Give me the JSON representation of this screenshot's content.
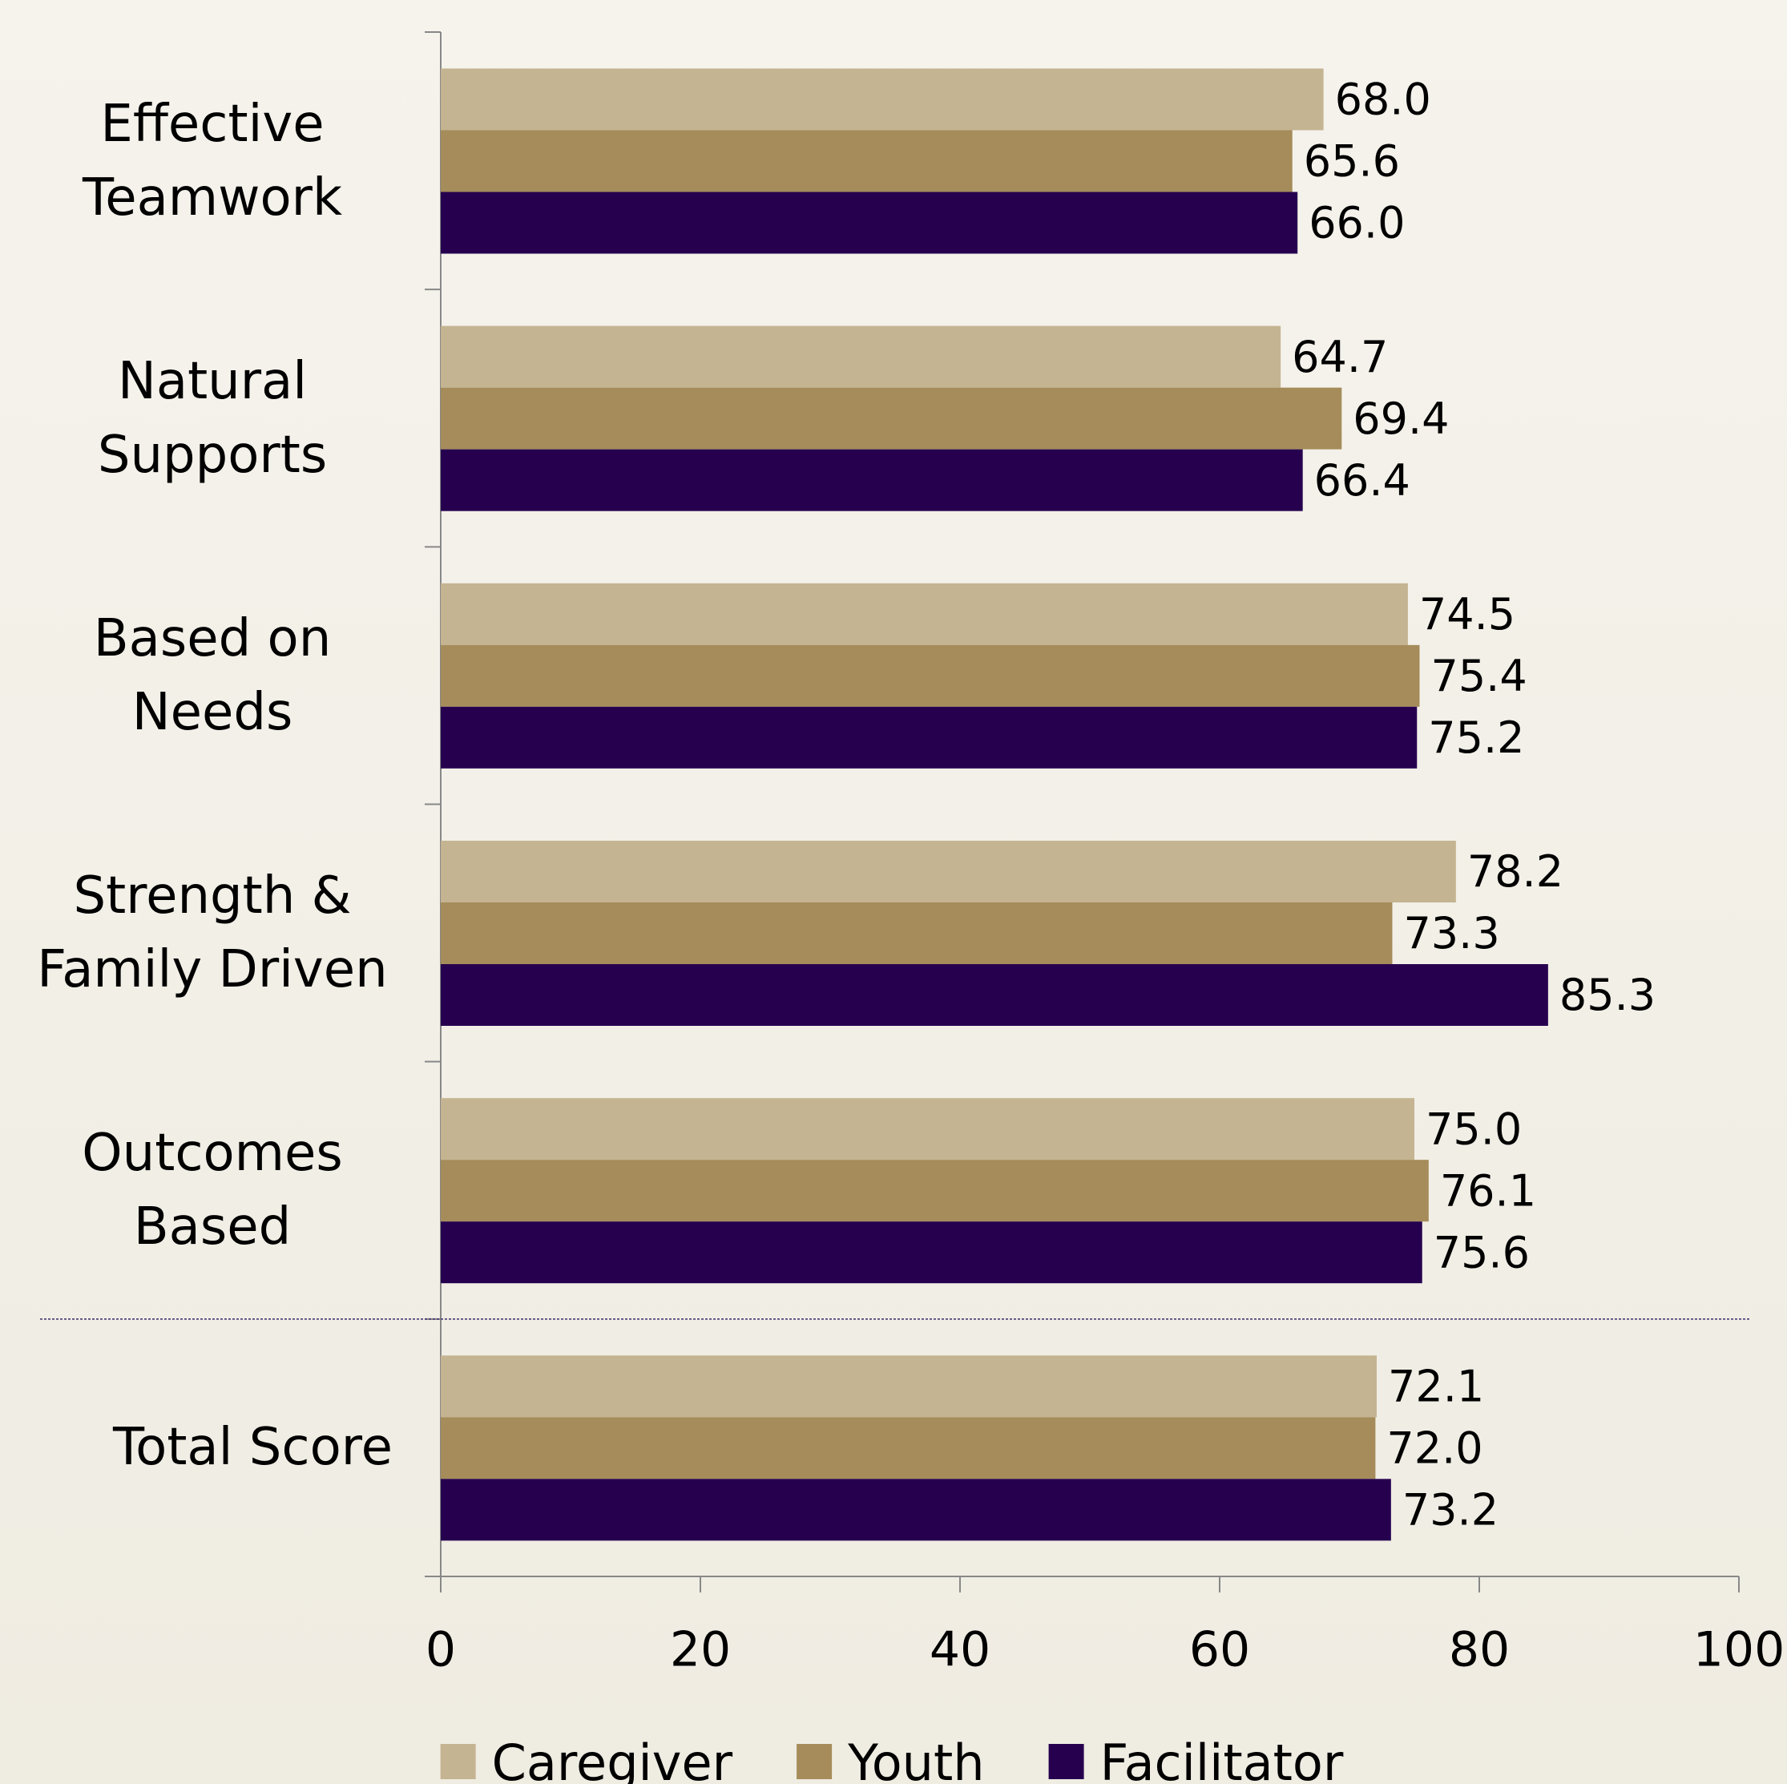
{
  "chart_data": {
    "type": "bar",
    "orientation": "horizontal",
    "categories": [
      "Effective Teamwork",
      "Natural Supports",
      "Based on Needs",
      "Strength & Family Driven",
      "Outcomes Based",
      "Total Score"
    ],
    "series": [
      {
        "name": "Caregiver",
        "color": "#c4b491",
        "values": [
          68.0,
          64.7,
          74.5,
          78.2,
          75.0,
          72.1
        ],
        "value_labels": [
          "68.0",
          "64.7",
          "74.5",
          "78.2",
          "75.0",
          "72.1"
        ]
      },
      {
        "name": "Youth",
        "color": "#a58c5a",
        "values": [
          65.6,
          69.4,
          75.4,
          73.3,
          76.1,
          72.0
        ],
        "value_labels": [
          "65.6",
          "69.4",
          "75.4",
          "73.3",
          "76.1",
          "72.0"
        ]
      },
      {
        "name": "Facilitator",
        "color": "#26004f",
        "values": [
          66.0,
          66.4,
          75.2,
          85.3,
          75.6,
          73.2
        ],
        "value_labels": [
          "66.0",
          "66.4",
          "75.2",
          "85.3",
          "75.6",
          "73.2"
        ]
      }
    ],
    "xlim": [
      0,
      100
    ],
    "xticks": [
      0,
      20,
      40,
      60,
      80,
      100
    ],
    "legend": "bottom"
  }
}
